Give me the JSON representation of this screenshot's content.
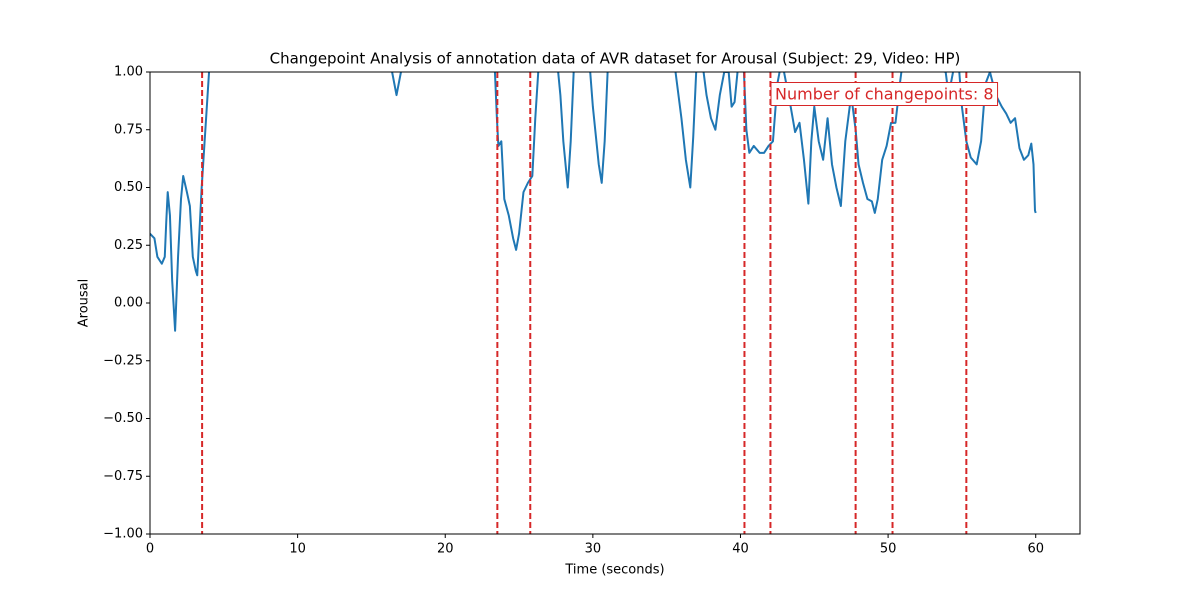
{
  "chart_data": {
    "type": "line",
    "title": "Changepoint Analysis of annotation data of AVR dataset for Arousal (Subject: 29, Video: HP)",
    "x_label": "Time (seconds)",
    "y_label": "Arousal",
    "annotation": "Number of changepoints: 8",
    "color": "#1f77b4",
    "changepoint_color": "#d62728",
    "xlim": [
      0,
      63
    ],
    "ylim": [
      -1,
      1
    ],
    "xticks": [
      0,
      10,
      20,
      30,
      40,
      50,
      60
    ],
    "yticks": [
      {
        "value": -1,
        "label": "−1.00"
      },
      {
        "value": -0.75,
        "label": "−0.75"
      },
      {
        "value": -0.5,
        "label": "−0.50"
      },
      {
        "value": -0.25,
        "label": "−0.25"
      },
      {
        "value": 0,
        "label": "0.00"
      },
      {
        "value": 0.25,
        "label": "0.25"
      },
      {
        "value": 0.5,
        "label": "0.50"
      },
      {
        "value": 0.75,
        "label": "0.75"
      },
      {
        "value": 1,
        "label": "1.00"
      }
    ],
    "changepoints": [
      3.53,
      23.53,
      25.76,
      40.27,
      42.03,
      47.8,
      50.3,
      55.3
    ],
    "x": [
      0,
      0.3,
      0.5,
      0.8,
      1.0,
      1.1,
      1.2,
      1.35,
      1.5,
      1.7,
      1.9,
      2.1,
      2.25,
      2.5,
      2.7,
      2.9,
      3.1,
      3.2,
      3.5,
      3.8,
      4.0,
      4.3,
      16.1,
      16.4,
      16.7,
      17.0,
      17.3,
      23.3,
      23.5,
      23.6,
      23.8,
      24.0,
      24.3,
      24.6,
      24.8,
      25.0,
      25.3,
      25.6,
      25.9,
      26.1,
      26.3,
      26.5,
      27.5,
      27.8,
      28.0,
      28.3,
      28.5,
      28.7,
      29.0,
      29.7,
      30.0,
      30.4,
      30.6,
      30.8,
      31.0,
      31.3,
      35.5,
      36.0,
      36.3,
      36.6,
      36.8,
      37.0,
      37.4,
      37.7,
      38.0,
      38.3,
      38.6,
      38.9,
      39.2,
      39.4,
      39.6,
      39.8,
      40.2,
      40.4,
      40.6,
      40.9,
      41.3,
      41.6,
      41.9,
      42.2,
      42.5,
      42.8,
      43.4,
      43.7,
      44.0,
      44.3,
      44.6,
      44.8,
      45.0,
      45.3,
      45.6,
      45.9,
      46.2,
      46.5,
      46.8,
      47.1,
      47.5,
      47.8,
      48.0,
      48.3,
      48.6,
      48.9,
      49.1,
      49.3,
      49.6,
      49.9,
      50.2,
      50.5,
      50.8,
      51.0,
      53.9,
      54.1,
      54.4,
      54.8,
      55.0,
      55.3,
      55.6,
      56.0,
      56.3,
      56.6,
      56.9,
      57.3,
      57.7,
      58.0,
      58.3,
      58.6,
      58.9,
      59.2,
      59.5,
      59.7,
      59.85,
      59.95,
      60.0
    ],
    "values": [
      0.3,
      0.28,
      0.2,
      0.17,
      0.2,
      0.35,
      0.48,
      0.38,
      0.1,
      -0.12,
      0.2,
      0.45,
      0.55,
      0.48,
      0.42,
      0.2,
      0.14,
      0.12,
      0.5,
      0.8,
      1.0,
      1.2,
      1.2,
      1.0,
      0.9,
      1.0,
      1.2,
      1.1,
      0.8,
      0.68,
      0.7,
      0.45,
      0.38,
      0.28,
      0.23,
      0.3,
      0.48,
      0.52,
      0.55,
      0.8,
      1.0,
      1.1,
      1.1,
      0.9,
      0.7,
      0.5,
      0.7,
      1.0,
      1.1,
      1.1,
      0.85,
      0.6,
      0.52,
      0.7,
      1.0,
      1.1,
      1.05,
      0.8,
      0.62,
      0.5,
      0.72,
      1.0,
      1.05,
      0.9,
      0.8,
      0.75,
      0.9,
      1.0,
      1.0,
      0.85,
      0.87,
      1.0,
      1.05,
      0.75,
      0.65,
      0.68,
      0.65,
      0.65,
      0.68,
      0.7,
      0.95,
      1.05,
      0.85,
      0.74,
      0.78,
      0.62,
      0.43,
      0.7,
      0.85,
      0.7,
      0.62,
      0.8,
      0.6,
      0.5,
      0.42,
      0.7,
      0.9,
      0.75,
      0.6,
      0.52,
      0.45,
      0.44,
      0.39,
      0.45,
      0.62,
      0.68,
      0.78,
      0.78,
      0.95,
      1.05,
      1.0,
      0.9,
      1.0,
      1.02,
      0.85,
      0.7,
      0.63,
      0.6,
      0.7,
      0.95,
      1.0,
      0.9,
      0.85,
      0.82,
      0.78,
      0.8,
      0.67,
      0.62,
      0.64,
      0.69,
      0.6,
      0.4,
      0.39
    ]
  }
}
